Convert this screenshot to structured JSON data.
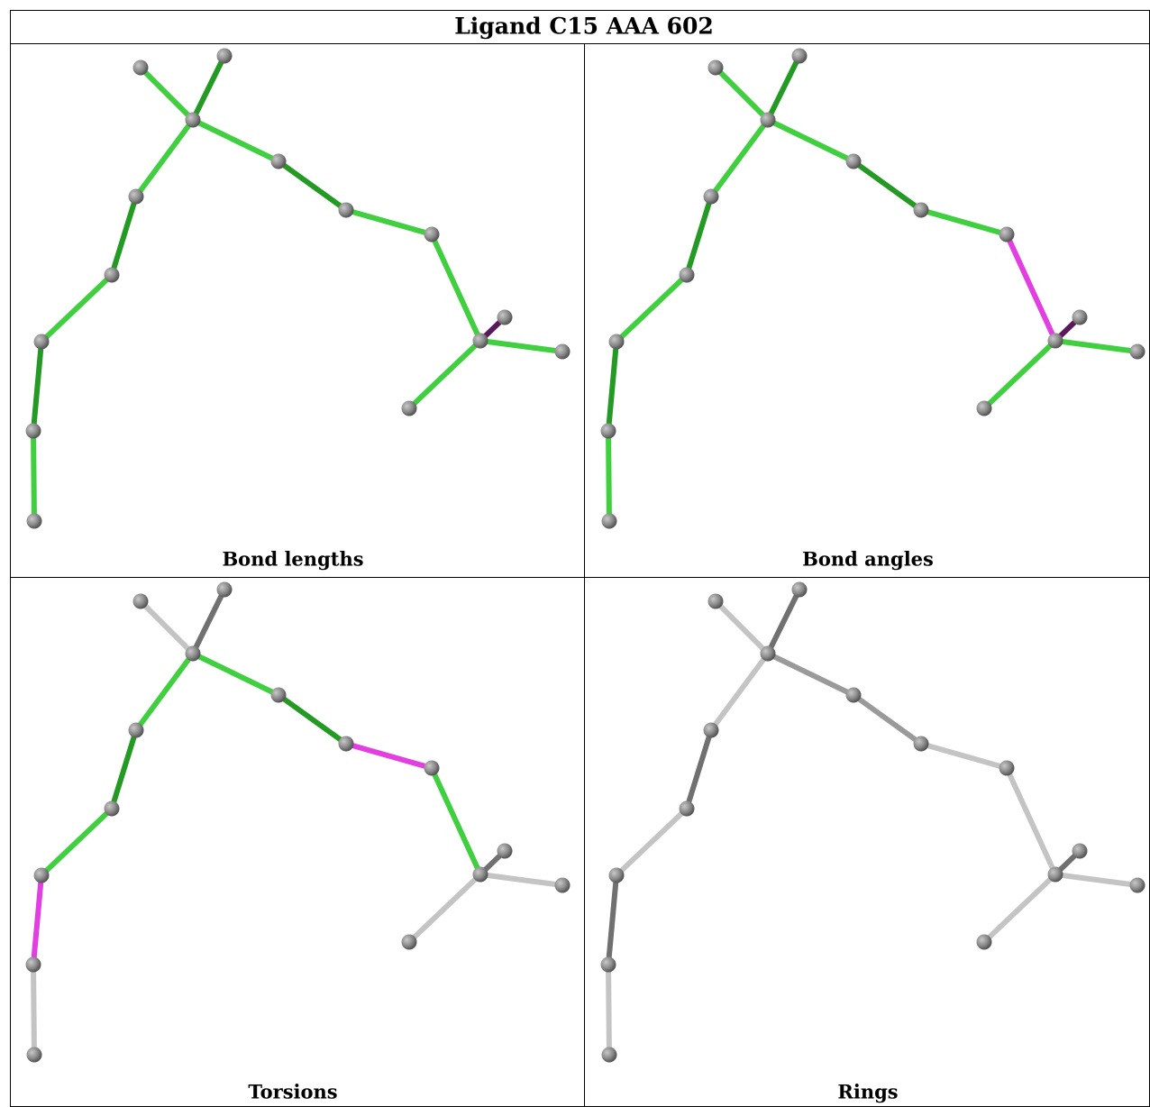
{
  "title": "Ligand C15 AAA 602",
  "panels": [
    {
      "label": "Bond lengths"
    },
    {
      "label": "Bond angles"
    },
    {
      "label": "Torsions"
    },
    {
      "label": "Rings"
    }
  ]
}
